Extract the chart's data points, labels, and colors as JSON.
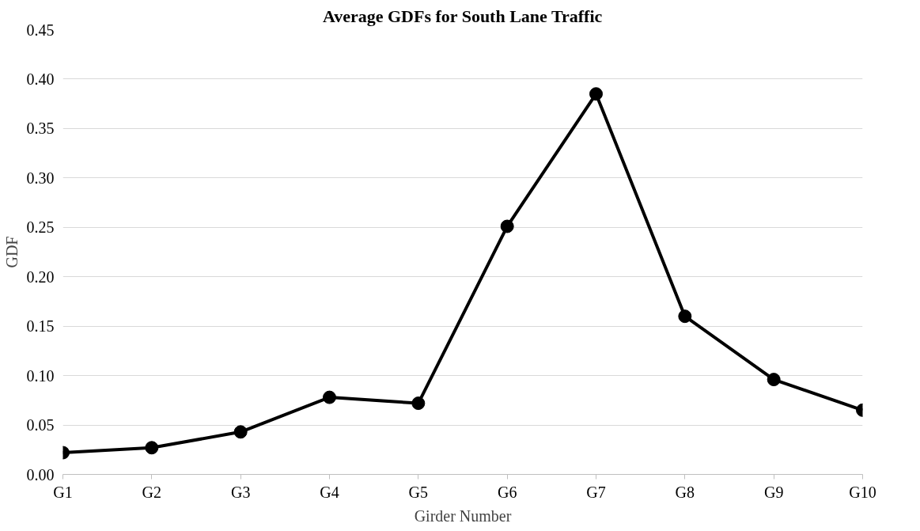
{
  "chart_data": {
    "type": "line",
    "title": "Average GDFs for South Lane Traffic",
    "xlabel": "Girder Number",
    "ylabel": "GDF",
    "categories": [
      "G1",
      "G2",
      "G3",
      "G4",
      "G5",
      "G6",
      "G7",
      "G8",
      "G9",
      "G10"
    ],
    "series": [
      {
        "color": "#000000",
        "values": [
          0.022,
          0.027,
          0.043,
          0.078,
          0.072,
          0.251,
          0.385,
          0.16,
          0.096,
          0.065
        ]
      }
    ],
    "ylim": [
      0,
      0.45
    ],
    "yticks": [
      {
        "value": 0,
        "label": "0.00"
      },
      {
        "value": 0.05,
        "label": "0.05"
      },
      {
        "value": 0.1,
        "label": "0.10"
      },
      {
        "value": 0.15,
        "label": "0.15"
      },
      {
        "value": 0.2,
        "label": "0.20"
      },
      {
        "value": 0.25,
        "label": "0.25"
      },
      {
        "value": 0.3,
        "label": "0.30"
      },
      {
        "value": 0.35,
        "label": "0.35"
      },
      {
        "value": 0.4,
        "label": "0.40"
      },
      {
        "value": 0.45,
        "label": "0.45"
      }
    ],
    "grid": "y",
    "marker": "circle",
    "line_style": "solid"
  }
}
